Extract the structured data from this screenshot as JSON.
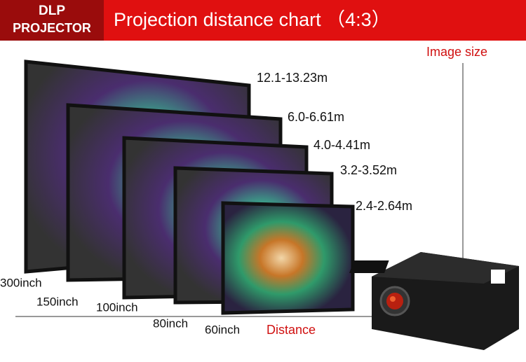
{
  "header": {
    "badge": [
      "DLP",
      "PROJECTOR"
    ],
    "title": "Projection distance chart （4:3）"
  },
  "labels": {
    "image_size": "Image size",
    "distance": "Distance"
  },
  "screens": [
    {
      "size": "300inch",
      "distance": "12.1-13.23m"
    },
    {
      "size": "150inch",
      "distance": "6.0-6.61m"
    },
    {
      "size": "100inch",
      "distance": "4.0-4.41m"
    },
    {
      "size": "80inch",
      "distance": "3.2-3.52m"
    },
    {
      "size": "60inch",
      "distance": "2.4-2.64m"
    }
  ]
}
